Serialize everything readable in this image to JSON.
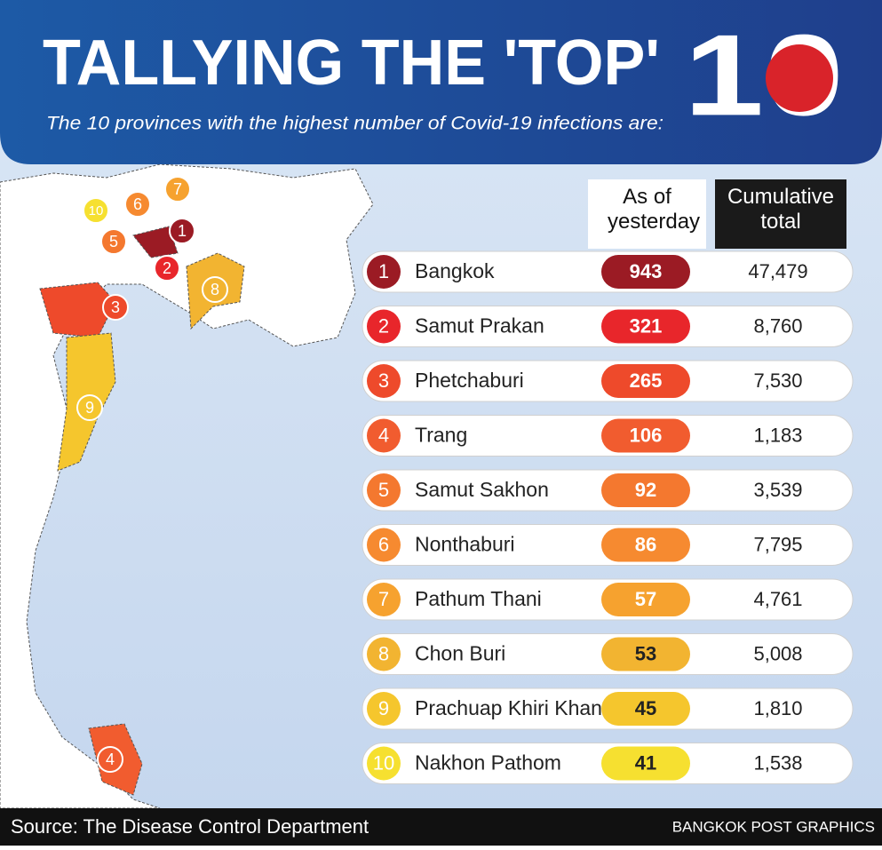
{
  "header": {
    "title": "TALLYING THE 'TOP'",
    "number": "10",
    "subtitle": "The 10 provinces with the highest number of Covid-19 infections are:"
  },
  "table": {
    "columns": [
      "As of yesterday",
      "Cumulative total"
    ],
    "rows": [
      {
        "rank": "1",
        "name": "Bangkok",
        "yesterday": "943",
        "cumulative": "47,479",
        "color": "#9b1b24"
      },
      {
        "rank": "2",
        "name": "Samut Prakan",
        "yesterday": "321",
        "cumulative": "8,760",
        "color": "#e8262b"
      },
      {
        "rank": "3",
        "name": "Phetchaburi",
        "yesterday": "265",
        "cumulative": "7,530",
        "color": "#ee4a2b"
      },
      {
        "rank": "4",
        "name": "Trang",
        "yesterday": "106",
        "cumulative": "1,183",
        "color": "#f15c2f"
      },
      {
        "rank": "5",
        "name": "Samut Sakhon",
        "yesterday": "92",
        "cumulative": "3,539",
        "color": "#f4782f"
      },
      {
        "rank": "6",
        "name": "Nonthaburi",
        "yesterday": "86",
        "cumulative": "7,795",
        "color": "#f68a30"
      },
      {
        "rank": "7",
        "name": "Pathum Thani",
        "yesterday": "57",
        "cumulative": "4,761",
        "color": "#f6a22f"
      },
      {
        "rank": "8",
        "name": "Chon Buri",
        "yesterday": "53",
        "cumulative": "5,008",
        "color": "#f2b431"
      },
      {
        "rank": "9",
        "name": "Prachuap Khiri Khan",
        "yesterday": "45",
        "cumulative": "1,810",
        "color": "#f5c62d"
      },
      {
        "rank": "10",
        "name": "Nakhon Pathom",
        "yesterday": "41",
        "cumulative": "1,538",
        "color": "#f6e030"
      }
    ]
  },
  "footer": {
    "source": "Source: The Disease Control Department",
    "credit": "BANGKOK POST GRAPHICS"
  }
}
